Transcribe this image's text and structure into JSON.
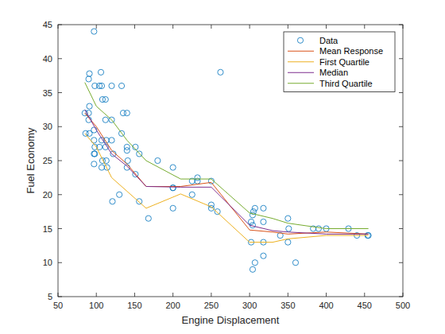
{
  "chart_data": {
    "type": "scatter",
    "x_label": "Engine Displacement",
    "y_label": "Fuel Economy",
    "xlim": [
      50,
      500
    ],
    "ylim": [
      5,
      45
    ],
    "xticks": [
      50,
      100,
      150,
      200,
      250,
      300,
      350,
      400,
      450,
      500
    ],
    "yticks": [
      5,
      10,
      15,
      20,
      25,
      30,
      35,
      40,
      45
    ],
    "grid": false,
    "legend": "northeast",
    "series": [
      {
        "name": "Data",
        "type": "scatter",
        "marker": "circle",
        "color": "#0072BD",
        "x": [
          97,
          262,
          91,
          90,
          106,
          98,
          104,
          107,
          120,
          133,
          108,
          112,
          85,
          90,
          91,
          135,
          140,
          90,
          112,
          120,
          97,
          86,
          91,
          133,
          97,
          107,
          113,
          120,
          98,
          104,
          112,
          140,
          140,
          151,
          97,
          98,
          122,
          156,
          108,
          113,
          141,
          180,
          97,
          107,
          114,
          140,
          200,
          151,
          232,
          232,
          225,
          250,
          200,
          200,
          130,
          225,
          121,
          156,
          250,
          250,
          200,
          258,
          304,
          305,
          307,
          318,
          350,
          302,
          318,
          351,
          304,
          383,
          390,
          400,
          429,
          440,
          455,
          454,
          340,
          168,
          302,
          318,
          350,
          318,
          307,
          360,
          304
        ],
        "values": [
          44,
          38,
          37.8,
          37,
          38,
          36,
          36,
          36,
          36,
          36,
          34,
          34,
          32,
          32,
          33,
          32,
          32,
          31,
          31,
          31,
          29.5,
          29,
          29,
          29,
          28,
          28,
          28,
          28,
          27,
          27,
          27,
          27,
          26.5,
          27,
          26,
          26,
          26,
          26,
          25,
          25,
          25,
          25,
          24.5,
          24,
          24,
          24,
          24,
          23,
          22.5,
          22,
          22,
          22,
          21,
          21,
          20,
          20,
          19,
          19,
          18.5,
          18,
          18,
          17.5,
          17,
          17.5,
          18,
          18,
          16.5,
          16,
          16,
          15,
          15.5,
          15,
          15,
          15,
          15,
          14,
          14,
          14,
          14,
          16.5,
          13,
          13,
          13,
          11,
          10,
          10,
          9
        ]
      },
      {
        "name": "Mean Response",
        "type": "line",
        "line_style": "solid",
        "color": "#D95319",
        "x": [
          85,
          100,
          120,
          140,
          165,
          210,
          250,
          300,
          330,
          350,
          400,
          455
        ],
        "values": [
          32,
          30,
          26.5,
          24.5,
          21.2,
          21.2,
          21.8,
          14.8,
          14.5,
          14.2,
          14.5,
          14.2
        ]
      },
      {
        "name": "First Quartile",
        "type": "line",
        "line_style": "solid",
        "color": "#EDB120",
        "x": [
          85,
          100,
          120,
          140,
          165,
          210,
          250,
          300,
          330,
          350,
          400,
          455
        ],
        "values": [
          29,
          27,
          22.5,
          20.5,
          18,
          20.1,
          18.2,
          13,
          13,
          13.5,
          14,
          14
        ]
      },
      {
        "name": "Median",
        "type": "line",
        "line_style": "solid",
        "color": "#7E2F8E",
        "x": [
          85,
          100,
          120,
          140,
          165,
          210,
          250,
          300,
          330,
          350,
          400,
          455
        ],
        "values": [
          32.5,
          29.5,
          26,
          24.2,
          21.2,
          21.1,
          21.1,
          15.5,
          14.7,
          14.5,
          14.2,
          14.2
        ]
      },
      {
        "name": "Third Quartile",
        "type": "line",
        "line_style": "solid",
        "color": "#77AC30",
        "x": [
          85,
          100,
          120,
          140,
          165,
          210,
          250,
          300,
          330,
          350,
          400,
          455
        ],
        "values": [
          36.5,
          33,
          31,
          28,
          25,
          22.3,
          22.3,
          17.3,
          16.5,
          15.8,
          15,
          15
        ]
      }
    ]
  }
}
